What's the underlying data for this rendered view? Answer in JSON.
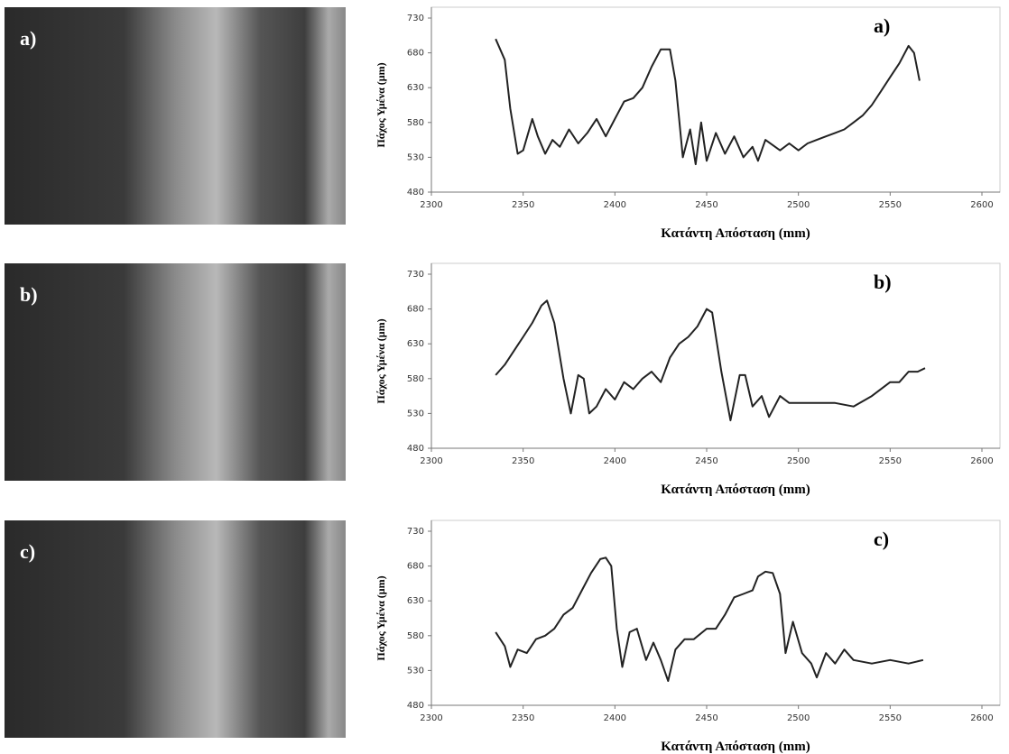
{
  "chart_data": [
    {
      "type": "line",
      "photo_label": "a)",
      "panel_label": "a)",
      "x_label": "Κατάντη Απόσταση (mm)",
      "y_label": "Πάχος Υμένα (μm)",
      "xlim": [
        2300,
        2600
      ],
      "xticks": [
        2300,
        2350,
        2400,
        2450,
        2500,
        2550,
        2600
      ],
      "ylim": [
        480,
        730
      ],
      "yticks": [
        480,
        530,
        580,
        630,
        680,
        730
      ],
      "color": "#222222",
      "x": [
        2335,
        2340,
        2343,
        2347,
        2350,
        2355,
        2358,
        2362,
        2366,
        2370,
        2375,
        2380,
        2385,
        2390,
        2395,
        2400,
        2405,
        2410,
        2415,
        2420,
        2425,
        2430,
        2433,
        2437,
        2441,
        2444,
        2447,
        2450,
        2455,
        2460,
        2465,
        2470,
        2475,
        2478,
        2482,
        2490,
        2495,
        2500,
        2505,
        2510,
        2515,
        2520,
        2525,
        2530,
        2535,
        2540,
        2545,
        2550,
        2555,
        2560,
        2563,
        2566
      ],
      "values": [
        700,
        670,
        600,
        535,
        540,
        585,
        560,
        535,
        555,
        545,
        570,
        550,
        565,
        585,
        560,
        585,
        610,
        615,
        630,
        660,
        685,
        685,
        640,
        530,
        570,
        520,
        580,
        525,
        565,
        535,
        560,
        530,
        545,
        525,
        555,
        540,
        550,
        540,
        550,
        555,
        560,
        565,
        570,
        580,
        590,
        605,
        625,
        645,
        665,
        690,
        680,
        640
      ]
    },
    {
      "type": "line",
      "photo_label": "b)",
      "panel_label": "b)",
      "x_label": "Κατάντη Απόσταση (mm)",
      "y_label": "Πάχος Υμένα (μm)",
      "xlim": [
        2300,
        2600
      ],
      "xticks": [
        2300,
        2350,
        2400,
        2450,
        2500,
        2550,
        2600
      ],
      "ylim": [
        480,
        730
      ],
      "yticks": [
        480,
        530,
        580,
        630,
        680,
        730
      ],
      "color": "#222222",
      "x": [
        2335,
        2340,
        2345,
        2350,
        2355,
        2360,
        2363,
        2367,
        2372,
        2376,
        2380,
        2383,
        2386,
        2390,
        2395,
        2400,
        2405,
        2410,
        2415,
        2420,
        2425,
        2430,
        2435,
        2440,
        2445,
        2450,
        2453,
        2458,
        2463,
        2468,
        2471,
        2475,
        2480,
        2484,
        2490,
        2495,
        2500,
        2510,
        2520,
        2530,
        2540,
        2550,
        2555,
        2560,
        2565,
        2569
      ],
      "values": [
        585,
        600,
        620,
        640,
        660,
        685,
        692,
        660,
        580,
        530,
        585,
        580,
        530,
        540,
        565,
        550,
        575,
        565,
        580,
        590,
        575,
        610,
        630,
        640,
        655,
        680,
        675,
        590,
        520,
        585,
        585,
        540,
        555,
        525,
        555,
        545,
        545,
        545,
        545,
        540,
        555,
        575,
        575,
        590,
        590,
        595
      ]
    },
    {
      "type": "line",
      "photo_label": "c)",
      "panel_label": "c)",
      "x_label": "Κατάντη Απόσταση (mm)",
      "y_label": "Πάχος Υμένα (μm)",
      "xlim": [
        2300,
        2600
      ],
      "xticks": [
        2300,
        2350,
        2400,
        2450,
        2500,
        2550,
        2600
      ],
      "ylim": [
        480,
        730
      ],
      "yticks": [
        480,
        530,
        580,
        630,
        680,
        730
      ],
      "color": "#222222",
      "x": [
        2335,
        2340,
        2343,
        2347,
        2352,
        2357,
        2362,
        2367,
        2372,
        2377,
        2382,
        2387,
        2392,
        2395,
        2398,
        2401,
        2404,
        2408,
        2412,
        2417,
        2421,
        2425,
        2429,
        2433,
        2438,
        2443,
        2450,
        2455,
        2460,
        2465,
        2470,
        2475,
        2478,
        2482,
        2486,
        2490,
        2493,
        2497,
        2502,
        2507,
        2510,
        2515,
        2520,
        2525,
        2530,
        2540,
        2550,
        2560,
        2568
      ],
      "values": [
        585,
        565,
        535,
        560,
        555,
        575,
        580,
        590,
        610,
        620,
        645,
        670,
        690,
        692,
        680,
        590,
        535,
        585,
        590,
        545,
        570,
        545,
        515,
        560,
        575,
        575,
        590,
        590,
        610,
        635,
        640,
        645,
        665,
        672,
        670,
        640,
        555,
        600,
        555,
        540,
        520,
        555,
        540,
        560,
        545,
        540,
        545,
        540,
        545
      ]
    }
  ]
}
